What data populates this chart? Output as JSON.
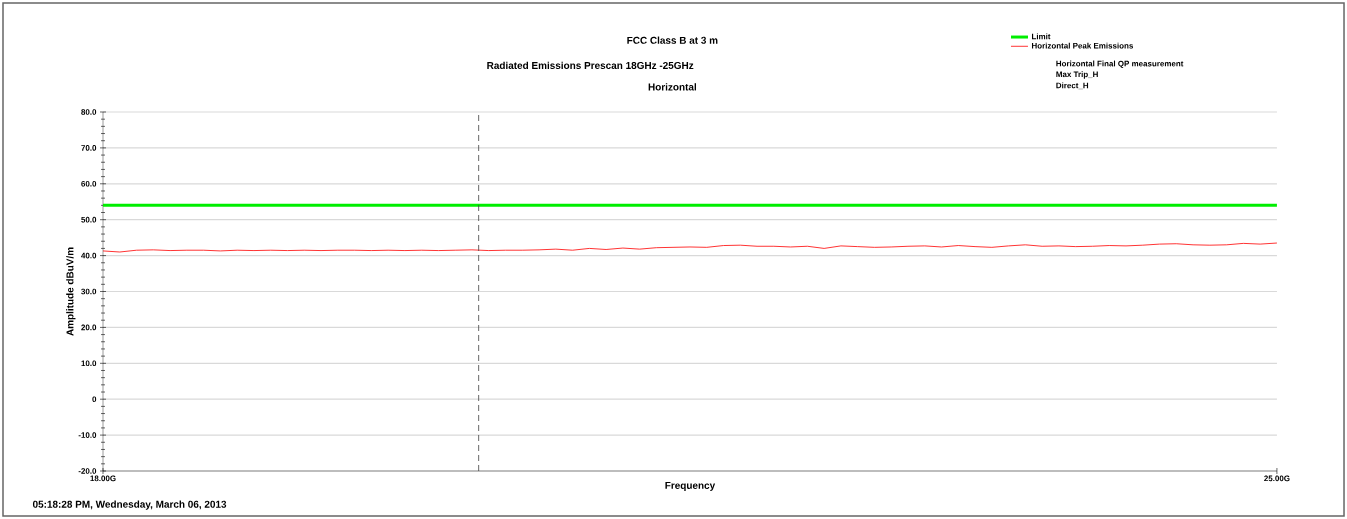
{
  "chart_data": {
    "type": "line",
    "title": "FCC Class B at 3 m",
    "subtitle": "Radiated Emissions Prescan 18GHz -25GHz",
    "annotations": [
      "Horizontal",
      "05:18:28 PM, Wednesday, March 06, 2013",
      "Horizontal Final QP measurement",
      "Max Trip_H",
      "Direct_H"
    ],
    "xlabel": "Frequency",
    "ylabel": "Amplitude dBuV/m",
    "xlim": [
      18,
      25
    ],
    "ylim": [
      -20,
      80
    ],
    "xticks": [
      {
        "value": 18,
        "label": "18.00G"
      },
      {
        "value": 25,
        "label": "25.00G"
      }
    ],
    "yticks": [
      {
        "value": -20,
        "label": "-20.0"
      },
      {
        "value": -10,
        "label": "-10.0"
      },
      0,
      {
        "value": 10,
        "label": "10.0"
      },
      {
        "value": 20,
        "label": "20.0"
      },
      {
        "value": 30,
        "label": "30.0"
      },
      {
        "value": 40,
        "label": "40.0"
      },
      {
        "value": 50,
        "label": "50.0"
      },
      {
        "value": 60,
        "label": "60.0"
      },
      {
        "value": 70,
        "label": "70.0"
      },
      {
        "value": 80,
        "label": "80.0"
      }
    ],
    "grid": "y",
    "legend": "top right",
    "marker": "none",
    "ref_lines": [
      {
        "axis": "x",
        "value": 20.24,
        "color": "#404040",
        "line_style": "dashed"
      }
    ],
    "series": [
      {
        "name": "Limit",
        "color": "#00ee00",
        "x": [
          18,
          25
        ],
        "values": [
          54,
          54
        ]
      },
      {
        "name": "Horizontal Peak Emissions",
        "color": "#ff0000",
        "x": [
          18.0,
          18.1,
          18.2,
          18.3,
          18.4,
          18.5,
          18.6,
          18.7,
          18.8,
          18.9,
          19.0,
          19.1,
          19.2,
          19.3,
          19.4,
          19.5,
          19.6,
          19.7,
          19.8,
          19.9,
          20.0,
          20.1,
          20.2,
          20.3,
          20.4,
          20.5,
          20.6,
          20.7,
          20.8,
          20.9,
          21.0,
          21.1,
          21.2,
          21.3,
          21.4,
          21.5,
          21.6,
          21.7,
          21.8,
          21.9,
          22.0,
          22.1,
          22.2,
          22.3,
          22.4,
          22.5,
          22.6,
          22.7,
          22.8,
          22.9,
          23.0,
          23.1,
          23.2,
          23.3,
          23.4,
          23.5,
          23.6,
          23.7,
          23.8,
          23.9,
          24.0,
          24.1,
          24.2,
          24.3,
          24.4,
          24.5,
          24.6,
          24.7,
          24.8,
          24.9,
          25.0
        ],
        "values": [
          41.3,
          41.0,
          41.5,
          41.6,
          41.4,
          41.5,
          41.5,
          41.3,
          41.5,
          41.4,
          41.5,
          41.4,
          41.5,
          41.4,
          41.5,
          41.5,
          41.4,
          41.5,
          41.4,
          41.5,
          41.4,
          41.5,
          41.6,
          41.4,
          41.5,
          41.5,
          41.6,
          41.8,
          41.5,
          42.0,
          41.7,
          42.1,
          41.8,
          42.2,
          42.3,
          42.4,
          42.3,
          42.8,
          42.9,
          42.6,
          42.6,
          42.4,
          42.6,
          42.0,
          42.7,
          42.5,
          42.3,
          42.4,
          42.6,
          42.7,
          42.4,
          42.8,
          42.5,
          42.3,
          42.7,
          43.0,
          42.6,
          42.7,
          42.5,
          42.6,
          42.8,
          42.7,
          42.9,
          43.2,
          43.3,
          43.0,
          42.9,
          43.0,
          43.4,
          43.2,
          43.5
        ]
      }
    ]
  }
}
